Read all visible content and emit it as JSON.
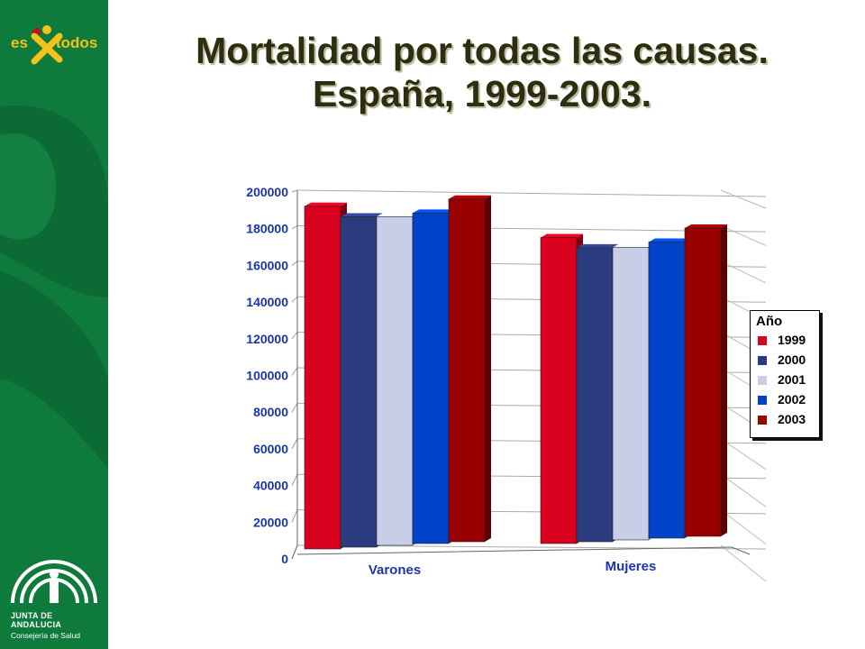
{
  "brand": {
    "top_logo": [
      "es",
      "todos"
    ],
    "bottom_logo": [
      "JUNTA DE ANDALUCIA",
      "Consejería de Salud"
    ]
  },
  "title": [
    "Mortalidad por todas las causas.",
    "España, 1999-2003."
  ],
  "chart_data": {
    "type": "bar",
    "title": "Mortalidad por todas las causas. España, 1999-2003.",
    "categories": [
      "Varones",
      "Mujeres"
    ],
    "series": [
      {
        "name": "1999",
        "color": "#d8001c",
        "values": [
          193000,
          175000
        ]
      },
      {
        "name": "2000",
        "color": "#2b3c7e",
        "values": [
          187000,
          169000
        ]
      },
      {
        "name": "2001",
        "color": "#c8cde8",
        "values": [
          187000,
          169000
        ]
      },
      {
        "name": "2002",
        "color": "#0042c8",
        "values": [
          189000,
          172000
        ]
      },
      {
        "name": "2003",
        "color": "#990000",
        "values": [
          197000,
          180000
        ]
      }
    ],
    "yticks": [
      "0",
      "20000",
      "40000",
      "60000",
      "80000",
      "100000",
      "120000",
      "140000",
      "160000",
      "180000",
      "200000"
    ],
    "ylim": [
      0,
      200000
    ],
    "legend": {
      "title": "Año",
      "placement": "right"
    },
    "grid": true,
    "label_color": "#1a35a8"
  }
}
